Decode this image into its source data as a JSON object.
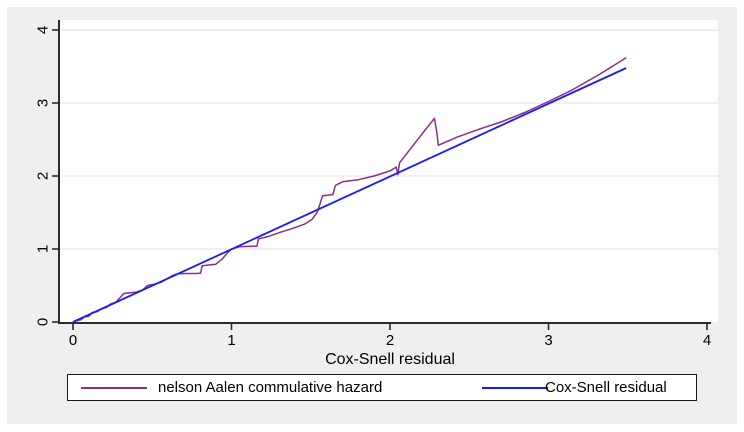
{
  "figure": {
    "xlabel": "Cox-Snell residual",
    "x_tick_labels": [
      "0",
      "1",
      "2",
      "3",
      "4"
    ],
    "y_tick_labels": [
      "0",
      "1",
      "2",
      "3",
      "4"
    ],
    "legend": [
      {
        "label": "nelson Aalen commulative hazard"
      },
      {
        "label": "Cox-Snell residual"
      }
    ]
  },
  "colors": {
    "canvas_background": "#efefef",
    "plot_background": "#ffffff",
    "gridline": "#e6e6e6",
    "axis": "#2b2b2b",
    "text": "#000000",
    "legend_border": "#1a1a1a",
    "nelson_aalen_line": "#8b2e8b",
    "cox_snell_line": "#1a1aff"
  },
  "chart_data": {
    "type": "line",
    "title": "",
    "xlabel": "Cox-Snell residual",
    "ylabel": "",
    "xlim": [
      0,
      4
    ],
    "ylim": [
      0,
      4
    ],
    "x_ticks": [
      0,
      1,
      2,
      3,
      4
    ],
    "y_ticks": [
      0,
      1,
      2,
      3,
      4
    ],
    "grid": "horizontal",
    "legend_position": "bottom",
    "series": [
      {
        "name": "nelson Aalen commulative hazard",
        "color": "#8b2e8b",
        "points": [
          [
            0,
            0
          ],
          [
            0.02,
            0.015
          ],
          [
            0.05,
            0.03
          ],
          [
            0.07,
            0.07
          ],
          [
            0.1,
            0.08
          ],
          [
            0.12,
            0.13
          ],
          [
            0.15,
            0.14
          ],
          [
            0.18,
            0.18
          ],
          [
            0.21,
            0.2
          ],
          [
            0.24,
            0.25
          ],
          [
            0.27,
            0.27
          ],
          [
            0.3,
            0.34
          ],
          [
            0.32,
            0.39
          ],
          [
            0.36,
            0.4
          ],
          [
            0.4,
            0.41
          ],
          [
            0.44,
            0.44
          ],
          [
            0.47,
            0.5
          ],
          [
            0.52,
            0.52
          ],
          [
            0.56,
            0.55
          ],
          [
            0.6,
            0.6
          ],
          [
            0.63,
            0.64
          ],
          [
            0.66,
            0.66
          ],
          [
            0.72,
            0.665
          ],
          [
            0.78,
            0.665
          ],
          [
            0.805,
            0.67
          ],
          [
            0.815,
            0.77
          ],
          [
            0.85,
            0.78
          ],
          [
            0.9,
            0.79
          ],
          [
            0.94,
            0.86
          ],
          [
            0.98,
            0.96
          ],
          [
            1.0,
            1.0
          ],
          [
            1.05,
            1.03
          ],
          [
            1.11,
            1.035
          ],
          [
            1.16,
            1.04
          ],
          [
            1.17,
            1.14
          ],
          [
            1.23,
            1.17
          ],
          [
            1.31,
            1.23
          ],
          [
            1.39,
            1.285
          ],
          [
            1.46,
            1.34
          ],
          [
            1.51,
            1.41
          ],
          [
            1.54,
            1.5
          ],
          [
            1.56,
            1.63
          ],
          [
            1.575,
            1.73
          ],
          [
            1.64,
            1.745
          ],
          [
            1.655,
            1.87
          ],
          [
            1.7,
            1.92
          ],
          [
            1.8,
            1.95
          ],
          [
            1.9,
            2.0
          ],
          [
            2.0,
            2.07
          ],
          [
            2.04,
            2.12
          ],
          [
            2.05,
            2.02
          ],
          [
            2.06,
            2.18
          ],
          [
            2.16,
            2.46
          ],
          [
            2.28,
            2.79
          ],
          [
            2.295,
            2.6
          ],
          [
            2.305,
            2.42
          ],
          [
            2.42,
            2.53
          ],
          [
            2.56,
            2.64
          ],
          [
            2.7,
            2.74
          ],
          [
            2.85,
            2.87
          ],
          [
            3.0,
            3.02
          ],
          [
            3.15,
            3.18
          ],
          [
            3.32,
            3.39
          ],
          [
            3.49,
            3.62
          ]
        ]
      },
      {
        "name": "Cox-Snell residual",
        "color": "#1a1aff",
        "points": [
          [
            0,
            0
          ],
          [
            3.49,
            3.48
          ]
        ]
      }
    ]
  }
}
